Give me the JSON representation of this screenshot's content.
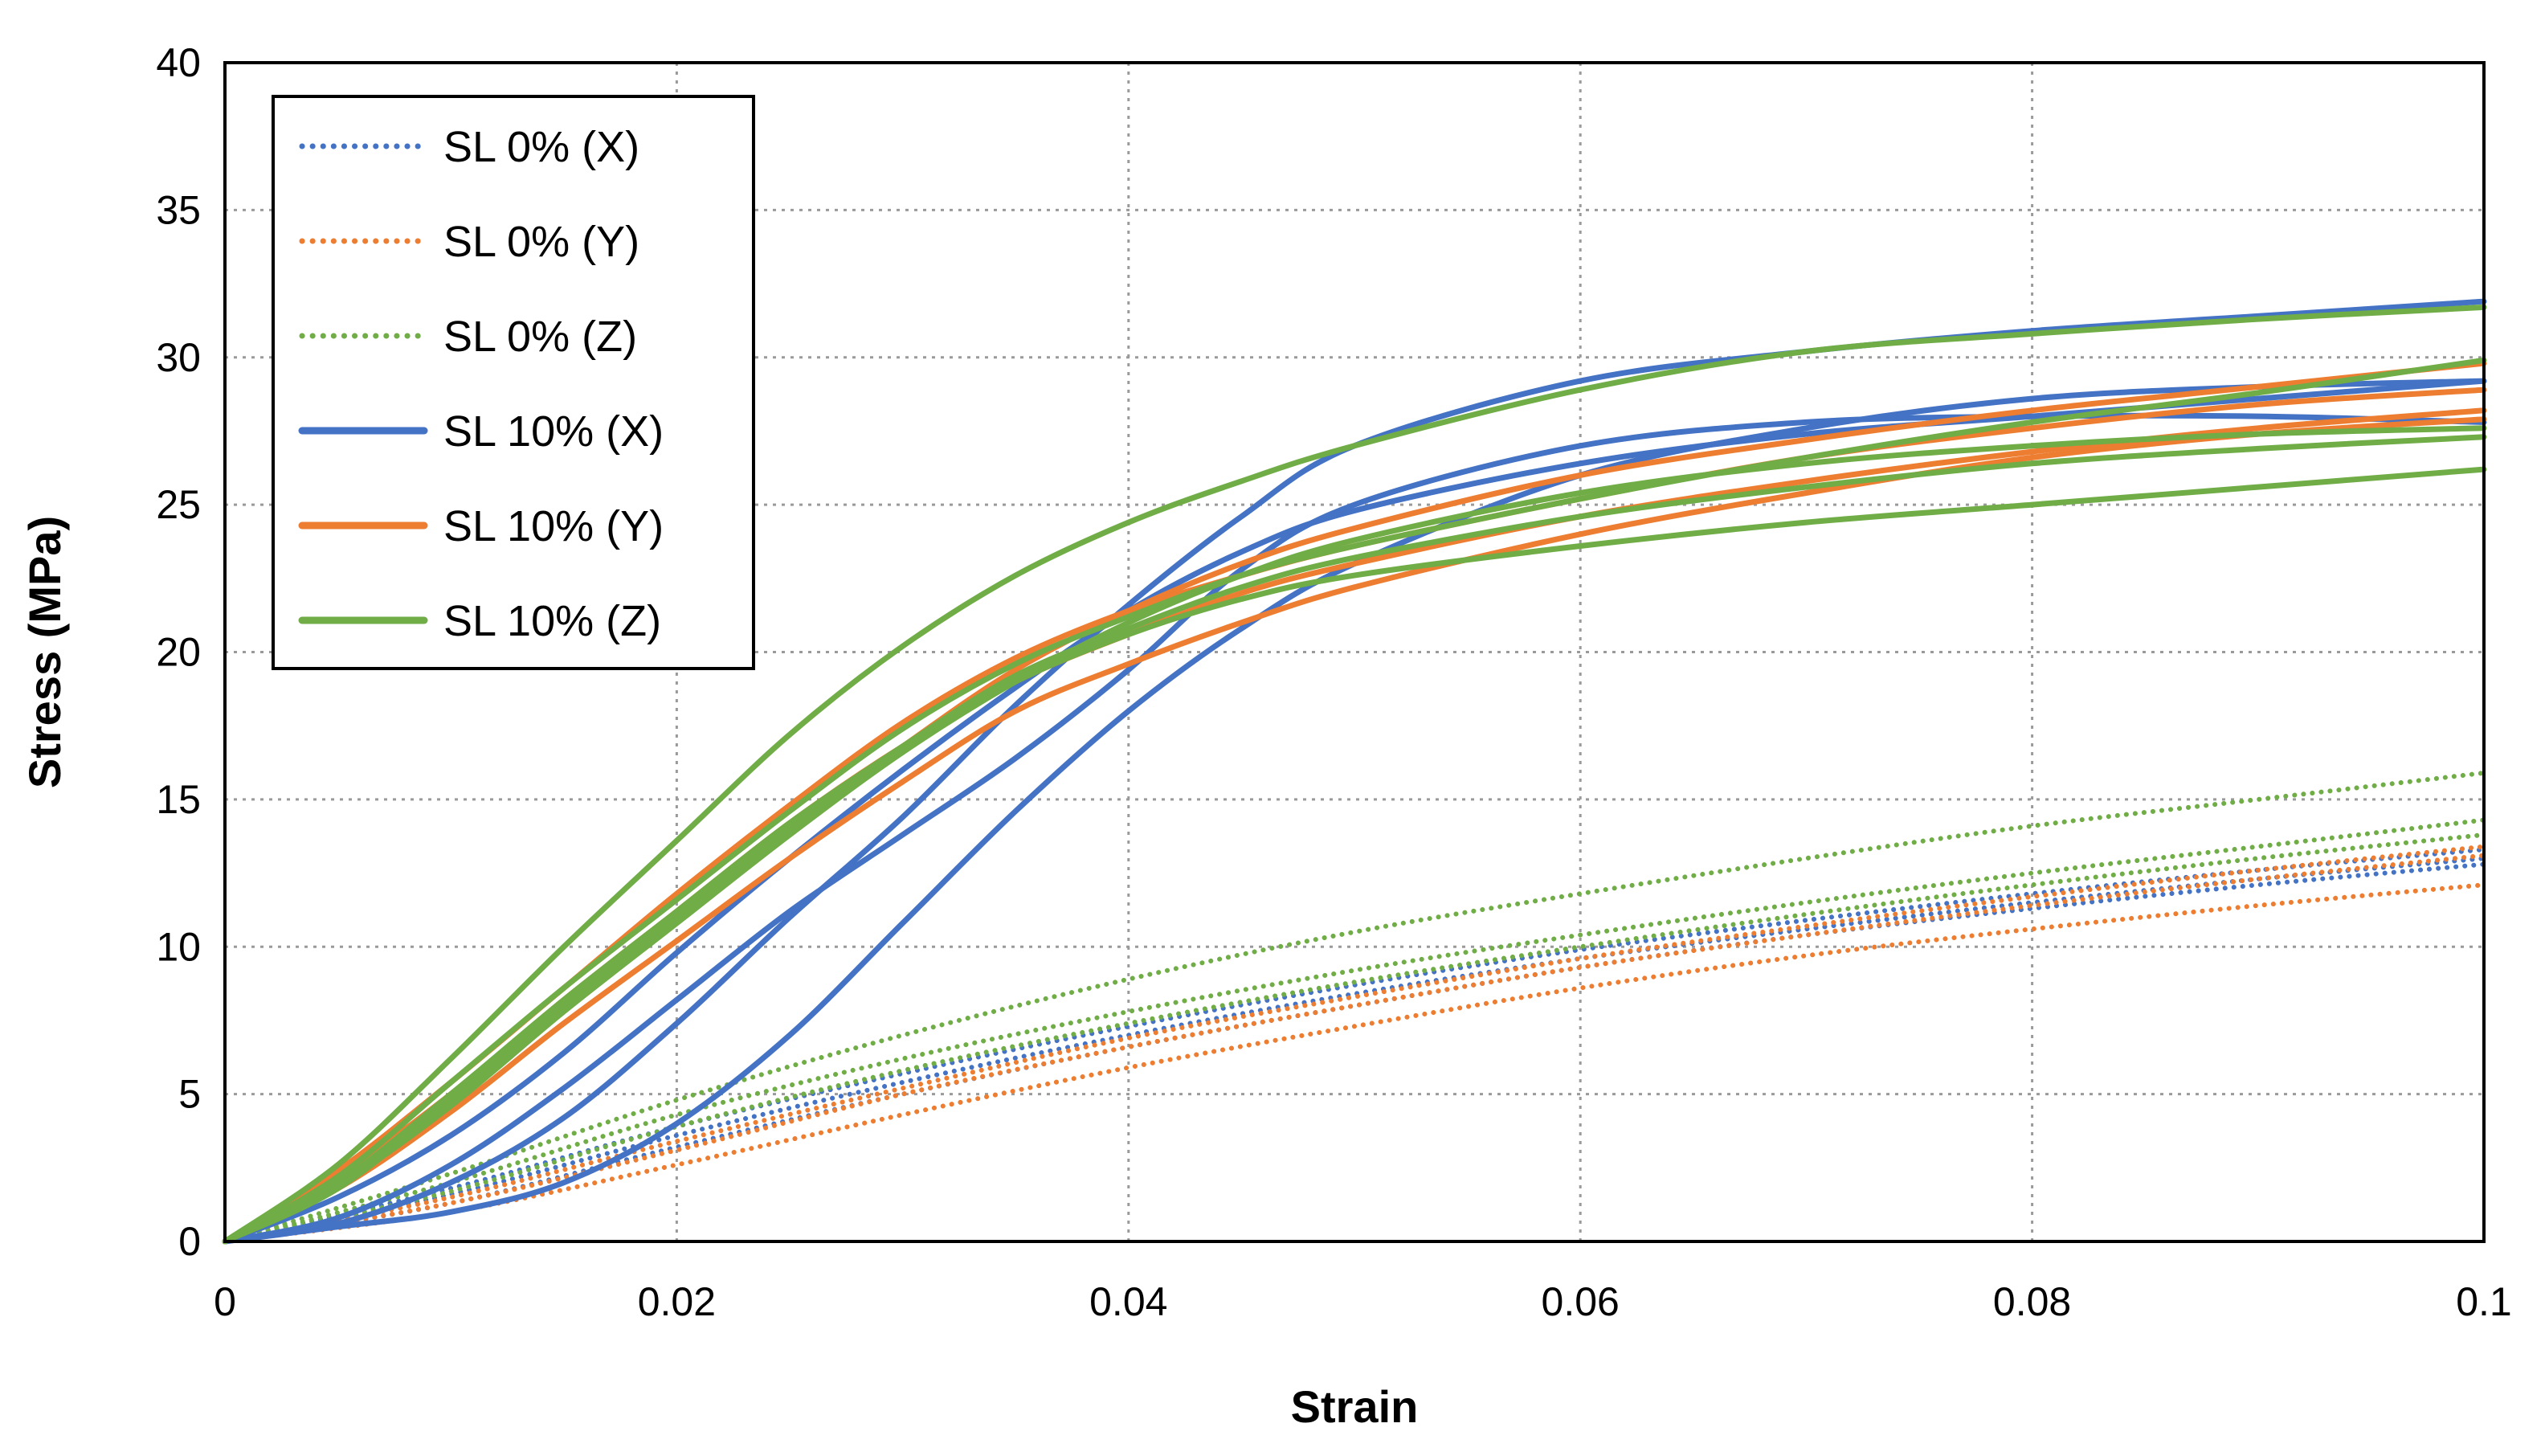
{
  "chart_data": {
    "type": "line",
    "title": "",
    "xlabel": "Strain",
    "ylabel": "Stress (MPa)",
    "xlim": [
      0,
      0.1
    ],
    "ylim": [
      0,
      40
    ],
    "x_ticks": [
      0,
      0.02,
      0.04,
      0.06,
      0.08,
      0.1
    ],
    "x_tick_labels": [
      "0",
      "0.02",
      "0.04",
      "0.06",
      "0.08",
      "0.1"
    ],
    "y_ticks": [
      0,
      5,
      10,
      15,
      20,
      25,
      30,
      35,
      40
    ],
    "y_tick_labels": [
      "0",
      "5",
      "10",
      "15",
      "20",
      "25",
      "30",
      "35",
      "40"
    ],
    "grid": "dotted",
    "legend_position": "top-left",
    "legend": [
      {
        "label": "SL 0% (X)",
        "color": "#4472C4",
        "style": "dotted"
      },
      {
        "label": "SL 0% (Y)",
        "color": "#ED7D31",
        "style": "dotted"
      },
      {
        "label": "SL 0% (Z)",
        "color": "#70AD47",
        "style": "dotted"
      },
      {
        "label": "SL 10% (X)",
        "color": "#4472C4",
        "style": "solid"
      },
      {
        "label": "SL 10% (Y)",
        "color": "#ED7D31",
        "style": "solid"
      },
      {
        "label": "SL 10% (Z)",
        "color": "#70AD47",
        "style": "solid"
      }
    ],
    "series": [
      {
        "name": "SL 0% (X)",
        "color": "#4472C4",
        "style": "dotted",
        "x": [
          0,
          0.01,
          0.02,
          0.03,
          0.04,
          0.05,
          0.06,
          0.07,
          0.08,
          0.09,
          0.1
        ],
        "y": [
          0,
          1.6,
          3.6,
          5.4,
          7.0,
          8.4,
          9.6,
          10.6,
          11.5,
          12.3,
          13.0
        ]
      },
      {
        "name": "SL 0% (X)",
        "color": "#4472C4",
        "style": "dotted",
        "x": [
          0,
          0.01,
          0.02,
          0.03,
          0.04,
          0.05,
          0.06,
          0.07,
          0.08,
          0.09,
          0.1
        ],
        "y": [
          0,
          1.3,
          3.2,
          5.0,
          6.6,
          8.0,
          9.3,
          10.4,
          11.3,
          12.1,
          12.8
        ]
      },
      {
        "name": "SL 0% (X)",
        "color": "#4472C4",
        "style": "dotted",
        "x": [
          0,
          0.01,
          0.02,
          0.03,
          0.04,
          0.05,
          0.06,
          0.07,
          0.08,
          0.09,
          0.1
        ],
        "y": [
          0,
          1.8,
          3.9,
          5.7,
          7.3,
          8.7,
          9.9,
          10.9,
          11.8,
          12.6,
          13.3
        ]
      },
      {
        "name": "SL 0% (Y)",
        "color": "#ED7D31",
        "style": "dotted",
        "x": [
          0,
          0.01,
          0.02,
          0.03,
          0.04,
          0.05,
          0.06,
          0.07,
          0.08,
          0.09,
          0.1
        ],
        "y": [
          0,
          1.0,
          2.6,
          4.3,
          5.9,
          7.3,
          8.6,
          9.7,
          10.6,
          11.4,
          12.1
        ]
      },
      {
        "name": "SL 0% (Y)",
        "color": "#ED7D31",
        "style": "dotted",
        "x": [
          0,
          0.01,
          0.02,
          0.03,
          0.04,
          0.05,
          0.06,
          0.07,
          0.08,
          0.09,
          0.1
        ],
        "y": [
          0,
          1.3,
          3.1,
          5.0,
          6.6,
          8.0,
          9.3,
          10.4,
          11.4,
          12.3,
          13.1
        ]
      },
      {
        "name": "SL 0% (Y)",
        "color": "#ED7D31",
        "style": "dotted",
        "x": [
          0,
          0.01,
          0.02,
          0.03,
          0.04,
          0.05,
          0.06,
          0.07,
          0.08,
          0.09,
          0.1
        ],
        "y": [
          0,
          1.5,
          3.4,
          5.2,
          6.9,
          8.3,
          9.6,
          10.7,
          11.7,
          12.6,
          13.4
        ]
      },
      {
        "name": "SL 0% (Z)",
        "color": "#70AD47",
        "style": "dotted",
        "x": [
          0,
          0.01,
          0.02,
          0.03,
          0.04,
          0.05,
          0.06,
          0.07,
          0.08,
          0.09,
          0.1
        ],
        "y": [
          0,
          2.3,
          4.8,
          7.0,
          8.9,
          10.5,
          11.8,
          13.0,
          14.1,
          15.0,
          15.9
        ]
      },
      {
        "name": "SL 0% (Z)",
        "color": "#70AD47",
        "style": "dotted",
        "x": [
          0,
          0.01,
          0.02,
          0.03,
          0.04,
          0.05,
          0.06,
          0.07,
          0.08,
          0.09,
          0.1
        ],
        "y": [
          0,
          2.0,
          4.3,
          6.2,
          7.8,
          9.2,
          10.4,
          11.5,
          12.5,
          13.4,
          14.3
        ]
      },
      {
        "name": "SL 0% (Z)",
        "color": "#70AD47",
        "style": "dotted",
        "x": [
          0,
          0.01,
          0.02,
          0.03,
          0.04,
          0.05,
          0.06,
          0.07,
          0.08,
          0.09,
          0.1
        ],
        "y": [
          0,
          1.7,
          3.9,
          5.8,
          7.4,
          8.8,
          10.0,
          11.1,
          12.1,
          13.0,
          13.8
        ]
      },
      {
        "name": "SL 10% (X)",
        "color": "#4472C4",
        "style": "solid",
        "x": [
          0,
          0.005,
          0.01,
          0.015,
          0.02,
          0.025,
          0.03,
          0.035,
          0.04,
          0.045,
          0.05,
          0.06,
          0.07,
          0.08,
          0.09,
          0.1
        ],
        "y": [
          0,
          0.5,
          1.0,
          2.0,
          4.0,
          7.0,
          10.8,
          14.6,
          18.0,
          20.8,
          23.0,
          26.0,
          27.6,
          28.6,
          29.0,
          29.2
        ]
      },
      {
        "name": "SL 10% (X)",
        "color": "#4472C4",
        "style": "solid",
        "x": [
          0,
          0.005,
          0.01,
          0.015,
          0.02,
          0.025,
          0.03,
          0.035,
          0.04,
          0.045,
          0.05,
          0.06,
          0.07,
          0.08,
          0.09,
          0.1
        ],
        "y": [
          0,
          0.6,
          2.0,
          4.2,
          7.4,
          11.0,
          14.4,
          18.2,
          21.6,
          24.6,
          27.0,
          29.2,
          30.2,
          30.9,
          31.4,
          31.9
        ]
      },
      {
        "name": "SL 10% (X)",
        "color": "#4472C4",
        "style": "solid",
        "x": [
          0,
          0.005,
          0.01,
          0.015,
          0.02,
          0.025,
          0.03,
          0.035,
          0.04,
          0.045,
          0.05,
          0.06,
          0.07,
          0.08,
          0.09,
          0.1
        ],
        "y": [
          0,
          0.8,
          2.6,
          5.2,
          8.2,
          11.2,
          13.8,
          16.4,
          19.4,
          22.8,
          25.0,
          27.0,
          27.8,
          28.0,
          28.0,
          27.8
        ]
      },
      {
        "name": "SL 10% (X)",
        "color": "#4472C4",
        "style": "solid",
        "x": [
          0,
          0.005,
          0.01,
          0.015,
          0.02,
          0.025,
          0.03,
          0.035,
          0.04,
          0.045,
          0.05,
          0.06,
          0.07,
          0.08,
          0.09,
          0.1
        ],
        "y": [
          0,
          1.5,
          3.6,
          6.4,
          9.8,
          13.0,
          16.0,
          18.8,
          21.4,
          23.4,
          24.8,
          26.4,
          27.4,
          28.0,
          28.6,
          29.2
        ]
      },
      {
        "name": "SL 10% (Y)",
        "color": "#ED7D31",
        "style": "solid",
        "x": [
          0,
          0.005,
          0.01,
          0.015,
          0.02,
          0.025,
          0.03,
          0.035,
          0.04,
          0.045,
          0.05,
          0.06,
          0.07,
          0.08,
          0.09,
          0.1
        ],
        "y": [
          0,
          2.4,
          5.4,
          8.6,
          11.8,
          14.8,
          17.6,
          19.8,
          21.4,
          22.6,
          23.6,
          25.2,
          26.6,
          27.6,
          28.4,
          28.9
        ]
      },
      {
        "name": "SL 10% (Y)",
        "color": "#ED7D31",
        "style": "solid",
        "x": [
          0,
          0.005,
          0.01,
          0.015,
          0.02,
          0.025,
          0.03,
          0.035,
          0.04,
          0.045,
          0.05,
          0.06,
          0.07,
          0.08,
          0.09,
          0.1
        ],
        "y": [
          0,
          2.2,
          5.0,
          8.2,
          11.2,
          14.2,
          16.8,
          19.0,
          20.6,
          22.0,
          23.0,
          24.6,
          25.8,
          26.8,
          27.6,
          28.2
        ]
      },
      {
        "name": "SL 10% (Y)",
        "color": "#ED7D31",
        "style": "solid",
        "x": [
          0,
          0.005,
          0.01,
          0.015,
          0.02,
          0.025,
          0.03,
          0.035,
          0.04,
          0.045,
          0.05,
          0.06,
          0.07,
          0.08,
          0.09,
          0.1
        ],
        "y": [
          0,
          1.8,
          4.4,
          7.4,
          10.2,
          13.0,
          15.6,
          18.0,
          19.6,
          21.0,
          22.2,
          24.0,
          25.4,
          26.6,
          27.4,
          27.9
        ]
      },
      {
        "name": "SL 10% (Y)",
        "color": "#ED7D31",
        "style": "solid",
        "x": [
          0,
          0.005,
          0.01,
          0.015,
          0.02,
          0.025,
          0.03,
          0.035,
          0.04,
          0.045,
          0.05,
          0.06,
          0.07,
          0.08,
          0.09,
          0.1
        ],
        "y": [
          0,
          2.0,
          4.8,
          8.0,
          11.0,
          14.0,
          16.8,
          19.4,
          21.4,
          23.0,
          24.2,
          26.0,
          27.2,
          28.2,
          29.0,
          29.8
        ]
      },
      {
        "name": "SL 10% (Z)",
        "color": "#70AD47",
        "style": "solid",
        "x": [
          0,
          0.005,
          0.01,
          0.015,
          0.02,
          0.025,
          0.03,
          0.035,
          0.04,
          0.045,
          0.05,
          0.06,
          0.07,
          0.08,
          0.09,
          0.1
        ],
        "y": [
          0,
          2.6,
          6.2,
          10.0,
          13.6,
          17.2,
          20.2,
          22.6,
          24.4,
          25.8,
          27.0,
          28.9,
          30.2,
          30.8,
          31.3,
          31.7
        ]
      },
      {
        "name": "SL 10% (Z)",
        "color": "#70AD47",
        "style": "solid",
        "x": [
          0,
          0.005,
          0.01,
          0.015,
          0.02,
          0.025,
          0.03,
          0.035,
          0.04,
          0.045,
          0.05,
          0.06,
          0.07,
          0.08,
          0.09,
          0.1
        ],
        "y": [
          0,
          2.2,
          5.4,
          8.6,
          11.6,
          14.6,
          17.4,
          19.6,
          21.2,
          22.6,
          23.6,
          25.2,
          26.6,
          27.8,
          28.8,
          29.9
        ]
      },
      {
        "name": "SL 10% (Z)",
        "color": "#70AD47",
        "style": "solid",
        "x": [
          0,
          0.005,
          0.01,
          0.015,
          0.02,
          0.025,
          0.03,
          0.035,
          0.04,
          0.045,
          0.05,
          0.06,
          0.07,
          0.08,
          0.09,
          0.1
        ],
        "y": [
          0,
          1.8,
          4.8,
          8.0,
          11.0,
          14.0,
          16.8,
          19.0,
          20.6,
          21.8,
          22.6,
          23.6,
          24.4,
          25.0,
          25.6,
          26.2
        ]
      },
      {
        "name": "SL 10% (Z)",
        "color": "#70AD47",
        "style": "solid",
        "x": [
          0,
          0.005,
          0.01,
          0.015,
          0.02,
          0.025,
          0.03,
          0.035,
          0.04,
          0.045,
          0.05,
          0.06,
          0.07,
          0.08,
          0.09,
          0.1
        ],
        "y": [
          0,
          2.0,
          5.0,
          8.2,
          11.2,
          14.2,
          16.8,
          19.2,
          20.8,
          22.2,
          23.2,
          24.6,
          25.6,
          26.4,
          26.9,
          27.3
        ]
      },
      {
        "name": "SL 10% (Z)",
        "color": "#70AD47",
        "style": "solid",
        "x": [
          0,
          0.005,
          0.01,
          0.015,
          0.02,
          0.025,
          0.03,
          0.035,
          0.04,
          0.045,
          0.05,
          0.06,
          0.07,
          0.08,
          0.09,
          0.1
        ],
        "y": [
          0,
          1.9,
          4.6,
          7.8,
          10.8,
          13.8,
          16.6,
          19.0,
          21.0,
          22.6,
          23.8,
          25.4,
          26.4,
          27.0,
          27.4,
          27.6
        ]
      }
    ]
  }
}
